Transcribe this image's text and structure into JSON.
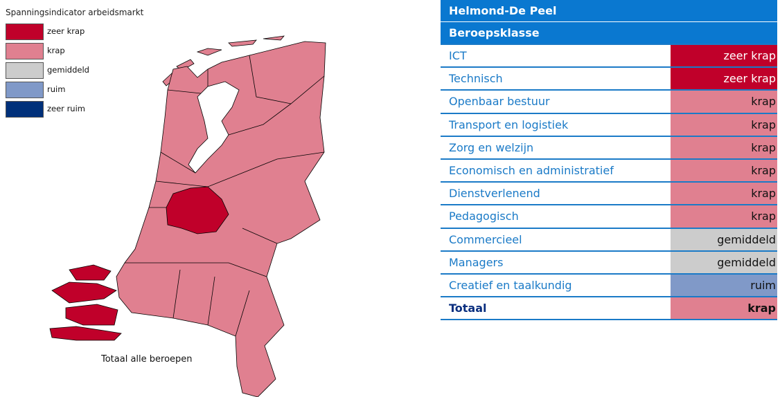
{
  "legend": {
    "title": "Spanningsindicator arbeidsmarkt",
    "items": [
      {
        "label": "zeer krap",
        "color": "#c0002a"
      },
      {
        "label": "krap",
        "color": "#e08090"
      },
      {
        "label": "gemiddeld",
        "color": "#cccccc"
      },
      {
        "label": "ruim",
        "color": "#8099c8"
      },
      {
        "label": "zeer ruim",
        "color": "#00307a"
      }
    ]
  },
  "map": {
    "caption": "Totaal alle beroepen"
  },
  "table": {
    "region": "Helmond-De Peel",
    "header": "Beroepsklasse",
    "rows": [
      {
        "name": "ICT",
        "status": "zeer krap"
      },
      {
        "name": "Technisch",
        "status": "zeer krap"
      },
      {
        "name": "Openbaar bestuur",
        "status": "krap"
      },
      {
        "name": "Transport en logistiek",
        "status": "krap"
      },
      {
        "name": "Zorg en welzijn",
        "status": "krap"
      },
      {
        "name": "Economisch en administratief",
        "status": "krap"
      },
      {
        "name": "Dienstverlenend",
        "status": "krap"
      },
      {
        "name": "Pedagogisch",
        "status": "krap"
      },
      {
        "name": "Commercieel",
        "status": "gemiddeld"
      },
      {
        "name": "Managers",
        "status": "gemiddeld"
      },
      {
        "name": "Creatief en taalkundig",
        "status": "ruim"
      }
    ],
    "total": {
      "name": "Totaal",
      "status": "krap"
    }
  }
}
